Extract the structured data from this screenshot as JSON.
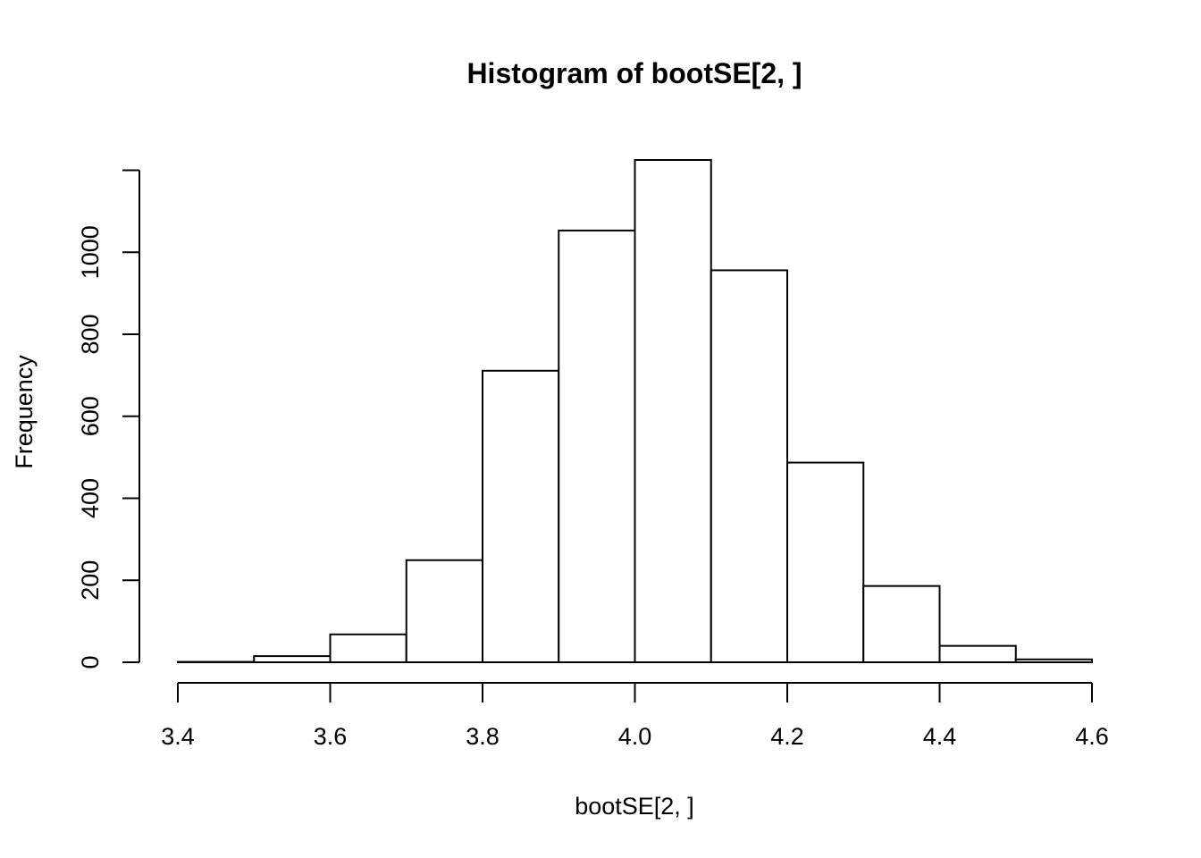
{
  "chart_data": {
    "type": "bar",
    "title": "Histogram of bootSE[2, ]",
    "xlabel": "bootSE[2, ]",
    "ylabel": "Frequency",
    "bins": [
      {
        "start": 3.4,
        "end": 3.5,
        "count": 1
      },
      {
        "start": 3.5,
        "end": 3.6,
        "count": 15
      },
      {
        "start": 3.6,
        "end": 3.7,
        "count": 68
      },
      {
        "start": 3.7,
        "end": 3.8,
        "count": 249
      },
      {
        "start": 3.8,
        "end": 3.9,
        "count": 711
      },
      {
        "start": 3.9,
        "end": 4.0,
        "count": 1053
      },
      {
        "start": 4.0,
        "end": 4.1,
        "count": 1225
      },
      {
        "start": 4.1,
        "end": 4.2,
        "count": 956
      },
      {
        "start": 4.2,
        "end": 4.3,
        "count": 487
      },
      {
        "start": 4.3,
        "end": 4.4,
        "count": 186
      },
      {
        "start": 4.4,
        "end": 4.5,
        "count": 40
      },
      {
        "start": 4.5,
        "end": 4.6,
        "count": 7
      }
    ],
    "xlim": [
      3.4,
      4.6
    ],
    "ylim": [
      0,
      1225
    ],
    "x_ticks": [
      3.4,
      3.6,
      3.8,
      4.0,
      4.2,
      4.4,
      4.6
    ],
    "x_tick_labels": [
      "3.4",
      "3.6",
      "3.8",
      "4.0",
      "4.2",
      "4.4",
      "4.6"
    ],
    "y_ticks": [
      0,
      200,
      400,
      600,
      800,
      1000
    ],
    "y_tick_labels": [
      "0",
      "200",
      "400",
      "600",
      "800",
      "1000"
    ],
    "grid": false,
    "bar_fill": "#ffffff",
    "bar_stroke": "#000000"
  }
}
